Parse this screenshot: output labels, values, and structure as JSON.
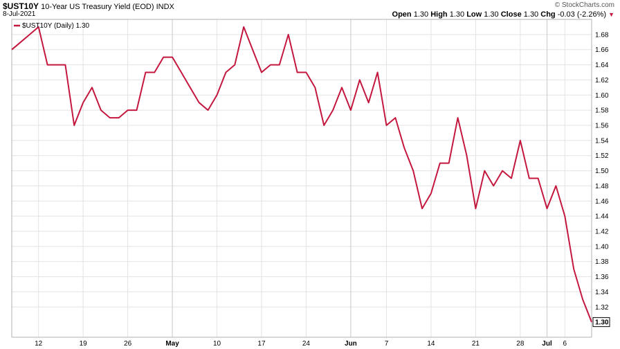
{
  "header": {
    "symbol": "$UST10Y",
    "name": "10-Year US Treasury Yield (EOD)",
    "exchange": "INDX",
    "date": "8-Jul-2021",
    "brand": "© StockCharts.com",
    "open_label": "Open",
    "open": "1.30",
    "high_label": "High",
    "high": "1.30",
    "low_label": "Low",
    "low": "1.30",
    "close_label": "Close",
    "close": "1.30",
    "chg_label": "Chg",
    "chg": "-0.03 (-2.26%)"
  },
  "legend": {
    "label": "$UST10Y (Daily) 1.30"
  },
  "last_value_label": "1.30",
  "colors": {
    "line": "#c4173e",
    "grid": "#e3e3e3",
    "frame": "#b0b0b0"
  },
  "chart_data": {
    "type": "line",
    "title": "$UST10Y 10-Year US Treasury Yield (EOD)",
    "ylim": [
      1.28,
      1.7
    ],
    "yticks": [
      1.32,
      1.34,
      1.36,
      1.38,
      1.4,
      1.42,
      1.44,
      1.46,
      1.48,
      1.5,
      1.52,
      1.54,
      1.56,
      1.58,
      1.6,
      1.62,
      1.64,
      1.66,
      1.68
    ],
    "xticks": [
      {
        "label": "12",
        "index": 3,
        "month": false
      },
      {
        "label": "19",
        "index": 8,
        "month": false
      },
      {
        "label": "26",
        "index": 13,
        "month": false
      },
      {
        "label": "May",
        "index": 18,
        "month": true
      },
      {
        "label": "10",
        "index": 23,
        "month": false
      },
      {
        "label": "17",
        "index": 28,
        "month": false
      },
      {
        "label": "24",
        "index": 33,
        "month": false
      },
      {
        "label": "Jun",
        "index": 38,
        "month": true
      },
      {
        "label": "7",
        "index": 42,
        "month": false
      },
      {
        "label": "14",
        "index": 47,
        "month": false
      },
      {
        "label": "21",
        "index": 52,
        "month": false
      },
      {
        "label": "28",
        "index": 57,
        "month": false
      },
      {
        "label": "Jul",
        "index": 60,
        "month": true
      },
      {
        "label": "6",
        "index": 62,
        "month": false
      }
    ],
    "grid": true,
    "legend_position": "top-left",
    "series": [
      {
        "name": "$UST10Y (Daily) 1.30",
        "values": [
          1.66,
          1.67,
          1.68,
          1.69,
          1.64,
          1.64,
          1.64,
          1.56,
          1.59,
          1.61,
          1.58,
          1.57,
          1.57,
          1.58,
          1.58,
          1.63,
          1.63,
          1.65,
          1.65,
          1.63,
          1.61,
          1.59,
          1.58,
          1.6,
          1.63,
          1.64,
          1.69,
          1.66,
          1.63,
          1.64,
          1.64,
          1.68,
          1.63,
          1.63,
          1.61,
          1.56,
          1.58,
          1.61,
          1.58,
          1.62,
          1.59,
          1.63,
          1.56,
          1.57,
          1.53,
          1.5,
          1.45,
          1.47,
          1.51,
          1.51,
          1.57,
          1.52,
          1.45,
          1.5,
          1.48,
          1.5,
          1.49,
          1.54,
          1.49,
          1.49,
          1.45,
          1.48,
          1.44,
          1.37,
          1.33,
          1.3
        ]
      }
    ]
  }
}
